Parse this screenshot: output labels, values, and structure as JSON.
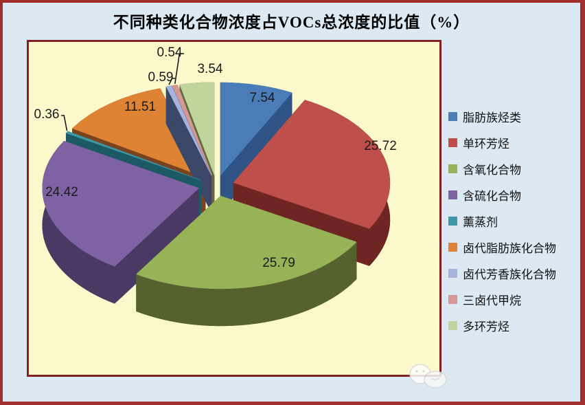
{
  "chart_data": {
    "type": "pie",
    "style": "3d-exploded",
    "title": "不同种类化合物浓度占VOCs总浓度的比值（%）",
    "unit": "%",
    "legend_position": "right",
    "labels_shown": true,
    "series": [
      {
        "label": "脂肪族烃类",
        "value": 7.54,
        "color": "#4A7CB8",
        "side_color": "#2E5384"
      },
      {
        "label": "单环芳烃",
        "value": 25.72,
        "color": "#BE4F4B",
        "side_color": "#6E2523"
      },
      {
        "label": "含氧化合物",
        "value": 25.79,
        "color": "#96B457",
        "side_color": "#556230"
      },
      {
        "label": "含硫化合物",
        "value": 24.42,
        "color": "#7E62A3",
        "side_color": "#4A3A63"
      },
      {
        "label": "薰蒸剂",
        "value": 0.36,
        "color": "#3E97A7",
        "side_color": "#1B5A64"
      },
      {
        "label": "卤代脂肪族化合物",
        "value": 11.51,
        "color": "#DD8333",
        "side_color": "#7A431F"
      },
      {
        "label": "卤代芳香族化合物",
        "value": 0.59,
        "color": "#A5B3DD",
        "side_color": "#3A4766"
      },
      {
        "label": "三卤代甲烷",
        "value": 0.54,
        "color": "#D69795",
        "side_color": "#8F5856"
      },
      {
        "label": "多环芳烃",
        "value": 3.54,
        "color": "#C0D49C",
        "side_color": "#5E6B3E"
      }
    ]
  },
  "colors": {
    "page_background": "#DCE9F2",
    "outer_border": "#A22D2F",
    "plot_background": "#FBF9CC",
    "plot_border": "#7E2224",
    "label_text": "#1A1A1A"
  }
}
